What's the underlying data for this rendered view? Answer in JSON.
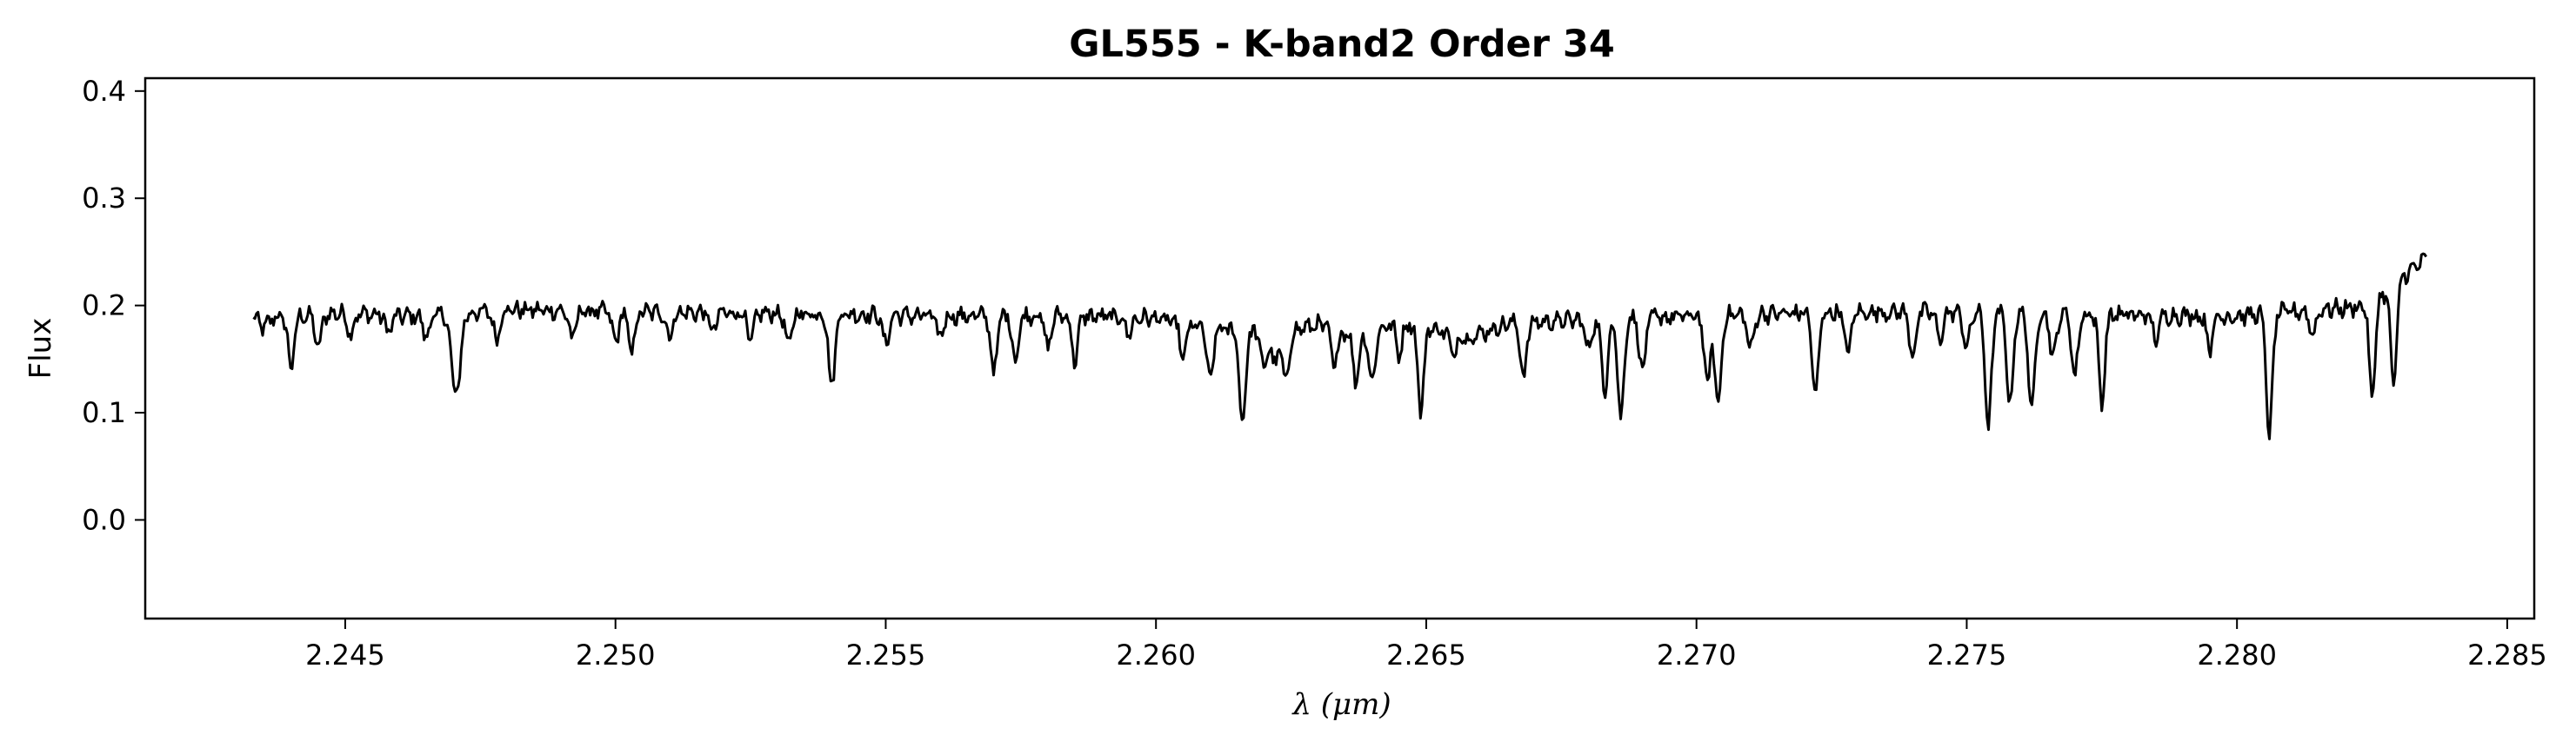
{
  "chart_data": {
    "type": "line",
    "title": "GL555 - K-band2 Order 34",
    "xlabel": "λ (μm)",
    "ylabel": "Flux",
    "xlim": [
      2.2413,
      2.2855
    ],
    "ylim": [
      -0.092,
      0.412
    ],
    "x_ticks": [
      "2.245",
      "2.250",
      "2.255",
      "2.260",
      "2.265",
      "2.270",
      "2.275",
      "2.280",
      "2.285"
    ],
    "y_ticks": [
      "0.0",
      "0.1",
      "0.2",
      "0.3",
      "0.4"
    ],
    "grid": false,
    "legend": "none",
    "line_color": "#000000",
    "series": [
      {
        "continuum": [
          [
            2.2433,
            0.187
          ],
          [
            2.245,
            0.193
          ],
          [
            2.246,
            0.19
          ],
          [
            2.247,
            0.191
          ],
          [
            2.248,
            0.196
          ],
          [
            2.25,
            0.194
          ],
          [
            2.252,
            0.193
          ],
          [
            2.254,
            0.192
          ],
          [
            2.256,
            0.19
          ],
          [
            2.258,
            0.191
          ],
          [
            2.26,
            0.188
          ],
          [
            2.2608,
            0.18
          ],
          [
            2.2618,
            0.175
          ],
          [
            2.2625,
            0.176
          ],
          [
            2.263,
            0.182
          ],
          [
            2.2638,
            0.172
          ],
          [
            2.2645,
            0.185
          ],
          [
            2.265,
            0.18
          ],
          [
            2.2658,
            0.17
          ],
          [
            2.2665,
            0.183
          ],
          [
            2.268,
            0.187
          ],
          [
            2.27,
            0.19
          ],
          [
            2.272,
            0.193
          ],
          [
            2.274,
            0.194
          ],
          [
            2.276,
            0.192
          ],
          [
            2.278,
            0.191
          ],
          [
            2.28,
            0.19
          ],
          [
            2.2815,
            0.196
          ],
          [
            2.2822,
            0.198
          ],
          [
            2.2827,
            0.21
          ],
          [
            2.283,
            0.225
          ],
          [
            2.2835,
            0.243
          ]
        ],
        "absorption_lines": [
          [
            2.2435,
            0.178
          ],
          [
            2.244,
            0.142
          ],
          [
            2.2445,
            0.16
          ],
          [
            2.2451,
            0.173
          ],
          [
            2.2458,
            0.175
          ],
          [
            2.2465,
            0.17
          ],
          [
            2.247,
            0.137
          ],
          [
            2.2471,
            0.138
          ],
          [
            2.2478,
            0.168
          ],
          [
            2.2492,
            0.168
          ],
          [
            2.25,
            0.165
          ],
          [
            2.2503,
            0.155
          ],
          [
            2.251,
            0.17
          ],
          [
            2.2518,
            0.175
          ],
          [
            2.2525,
            0.165
          ],
          [
            2.2532,
            0.162
          ],
          [
            2.254,
            0.122
          ],
          [
            2.255,
            0.163
          ],
          [
            2.256,
            0.17
          ],
          [
            2.257,
            0.137
          ],
          [
            2.2574,
            0.148
          ],
          [
            2.258,
            0.16
          ],
          [
            2.2585,
            0.148
          ],
          [
            2.2595,
            0.173
          ],
          [
            2.2605,
            0.15
          ],
          [
            2.261,
            0.128
          ],
          [
            2.2616,
            0.088
          ],
          [
            2.262,
            0.14
          ],
          [
            2.2622,
            0.143
          ],
          [
            2.2624,
            0.125
          ],
          [
            2.2633,
            0.142
          ],
          [
            2.2637,
            0.13
          ],
          [
            2.264,
            0.127
          ],
          [
            2.2645,
            0.155
          ],
          [
            2.2649,
            0.102
          ],
          [
            2.2655,
            0.153
          ],
          [
            2.2668,
            0.133
          ],
          [
            2.268,
            0.158
          ],
          [
            2.2683,
            0.118
          ],
          [
            2.2686,
            0.093
          ],
          [
            2.269,
            0.137
          ],
          [
            2.2702,
            0.125
          ],
          [
            2.2704,
            0.105
          ],
          [
            2.271,
            0.158
          ],
          [
            2.2722,
            0.113
          ],
          [
            2.2728,
            0.155
          ],
          [
            2.274,
            0.152
          ],
          [
            2.2745,
            0.168
          ],
          [
            2.275,
            0.16
          ],
          [
            2.2754,
            0.085
          ],
          [
            2.2758,
            0.105
          ],
          [
            2.2762,
            0.098
          ],
          [
            2.2766,
            0.15
          ],
          [
            2.277,
            0.133
          ],
          [
            2.2775,
            0.11
          ],
          [
            2.2785,
            0.168
          ],
          [
            2.2795,
            0.16
          ],
          [
            2.2806,
            0.078
          ],
          [
            2.2814,
            0.172
          ],
          [
            2.2825,
            0.113
          ],
          [
            2.2829,
            0.125
          ]
        ]
      }
    ]
  }
}
